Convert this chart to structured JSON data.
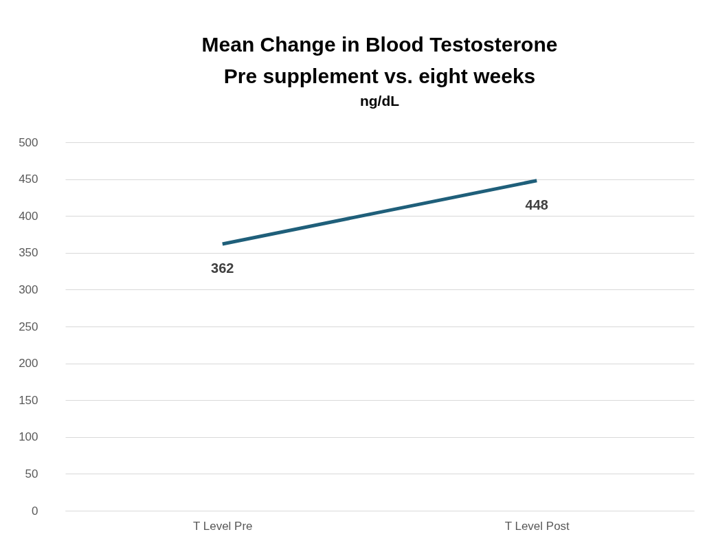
{
  "chart_data": {
    "type": "line",
    "title": [
      "Mean Change in Blood Testosterone",
      "Pre supplement vs. eight weeks"
    ],
    "subtitle": "ng/dL",
    "categories": [
      "T Level Pre",
      "T Level Post"
    ],
    "series": [
      {
        "color": "#1f5f7a",
        "values": [
          362,
          448
        ]
      }
    ],
    "ylim": [
      0,
      500
    ],
    "yticks": [
      0,
      50,
      100,
      150,
      200,
      250,
      300,
      350,
      400,
      450,
      500
    ],
    "grid": "y",
    "data_labels": true,
    "marker": "none",
    "line_style": "solid",
    "legend": false
  }
}
